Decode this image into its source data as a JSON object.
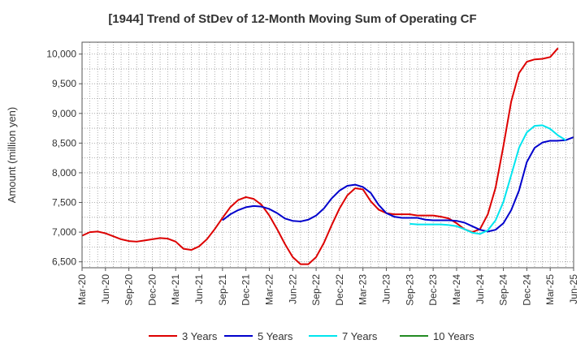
{
  "chart_data": {
    "type": "line",
    "title": "[1944]  Trend of StDev of 12-Month Moving Sum of Operating CF",
    "xlabel": "",
    "ylabel": "Amount (million yen)",
    "ylim": [
      6400,
      10200
    ],
    "yticks": [
      6500,
      7000,
      7500,
      8000,
      8500,
      9000,
      9500,
      10000
    ],
    "ytick_labels": [
      "6,500",
      "7,000",
      "7,500",
      "8,000",
      "8,500",
      "9,000",
      "9,500",
      "10,000"
    ],
    "xlim": [
      0,
      63
    ],
    "xticks": [
      0,
      3,
      6,
      9,
      12,
      15,
      18,
      21,
      24,
      27,
      30,
      33,
      36,
      39,
      42,
      45,
      48,
      51,
      54,
      57,
      60,
      63
    ],
    "xtick_labels": [
      "Mar-20",
      "Jun-20",
      "Sep-20",
      "Dec-20",
      "Mar-21",
      "Jun-21",
      "Sep-21",
      "Dec-21",
      "Mar-22",
      "Jun-22",
      "Sep-22",
      "Dec-22",
      "Mar-23",
      "Jun-23",
      "Sep-23",
      "Dec-23",
      "Mar-24",
      "Jun-24",
      "Sep-24",
      "Dec-24",
      "Mar-25",
      "Jun-25"
    ],
    "grid": true,
    "legend_position": "bottom",
    "series": [
      {
        "name": "3 Years",
        "color": "#dd0000",
        "start": 0,
        "values": [
          6940,
          7000,
          7010,
          6980,
          6930,
          6880,
          6850,
          6840,
          6860,
          6880,
          6900,
          6890,
          6840,
          6720,
          6700,
          6760,
          6880,
          7050,
          7240,
          7420,
          7540,
          7590,
          7560,
          7460,
          7280,
          7050,
          6800,
          6580,
          6460,
          6460,
          6580,
          6820,
          7120,
          7400,
          7620,
          7740,
          7720,
          7520,
          7380,
          7320,
          7300,
          7300,
          7300,
          7280,
          7280,
          7280,
          7260,
          7230,
          7150,
          7050,
          7000,
          7050,
          7300,
          7750,
          8450,
          9200,
          9680,
          9870,
          9910,
          9920,
          9950,
          10100
        ]
      },
      {
        "name": "5 Years",
        "color": "#0000cc",
        "start": 18,
        "values": [
          7200,
          7300,
          7370,
          7420,
          7440,
          7430,
          7390,
          7320,
          7230,
          7190,
          7180,
          7210,
          7280,
          7400,
          7570,
          7700,
          7780,
          7800,
          7760,
          7660,
          7460,
          7320,
          7260,
          7240,
          7240,
          7240,
          7210,
          7200,
          7200,
          7200,
          7190,
          7160,
          7100,
          7040,
          7010,
          7040,
          7150,
          7370,
          7700,
          8180,
          8420,
          8510,
          8540,
          8540,
          8550,
          8600
        ]
      },
      {
        "name": "7 Years",
        "color": "#00e5ee",
        "start": 42,
        "values": [
          7140,
          7130,
          7130,
          7130,
          7130,
          7120,
          7100,
          7050,
          6990,
          6970,
          7030,
          7200,
          7510,
          7960,
          8420,
          8680,
          8790,
          8800,
          8740,
          8630,
          8550
        ]
      },
      {
        "name": "10 Years",
        "color": "#228b22",
        "start": 0,
        "values": []
      }
    ]
  }
}
